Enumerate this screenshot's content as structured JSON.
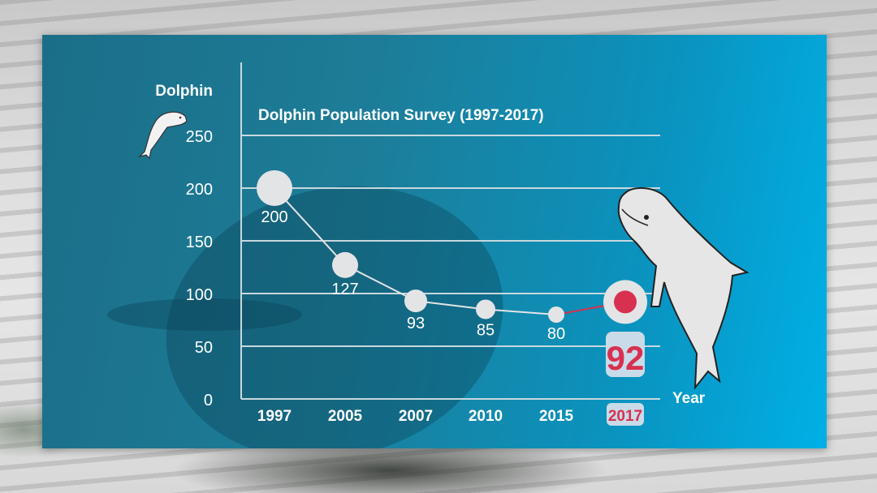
{
  "chart_data": {
    "type": "line",
    "title": "Dolphin Population Survey (1997-2017)",
    "xlabel": "Year",
    "ylabel": "Dolphin",
    "categories": [
      "1997",
      "2005",
      "2007",
      "2010",
      "2015",
      "2017"
    ],
    "values": [
      200,
      127,
      93,
      85,
      80,
      92
    ],
    "data_labels": [
      "200",
      "127",
      "93",
      "85",
      "80",
      "92"
    ],
    "yticks": [
      "0",
      "50",
      "100",
      "150",
      "200",
      "250"
    ],
    "ylim": [
      0,
      250
    ],
    "grid": true,
    "highlight": {
      "category": "2017",
      "value": 92,
      "label": "92"
    }
  },
  "colors": {
    "panel_start": "#1b6e88",
    "panel_end": "#00b0e6",
    "point_fill": "#e3e4e6",
    "highlight": "#d8304f",
    "highlight_badge": "#c9dbe8",
    "gridline": "#c8d8de",
    "text": "#ffffff"
  },
  "icons": {
    "small": "dolphin-icon-small",
    "large": "beluga-illustration"
  }
}
